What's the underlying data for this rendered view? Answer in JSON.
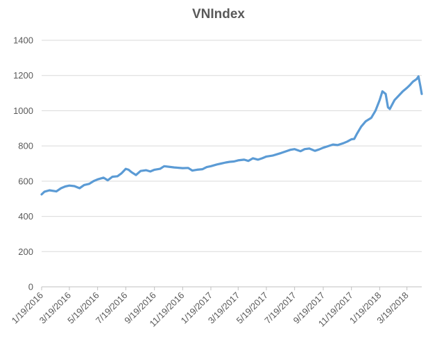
{
  "chart_data": {
    "type": "line",
    "title": "VNIndex",
    "xlabel": "",
    "ylabel": "",
    "ylim": [
      0,
      1400
    ],
    "yticks": [
      0,
      200,
      400,
      600,
      800,
      1000,
      1200,
      1400
    ],
    "xlim": [
      "1/19/2016",
      "4/20/2018"
    ],
    "xticks": [
      "1/19/2016",
      "3/19/2016",
      "5/19/2016",
      "7/19/2016",
      "9/19/2016",
      "11/19/2016",
      "1/19/2017",
      "3/19/2017",
      "5/19/2017",
      "7/19/2017",
      "9/19/2017",
      "11/19/2017",
      "1/19/2018",
      "3/19/2018"
    ],
    "grid": true,
    "series_color": "#5b9bd5",
    "series": [
      {
        "x": [
          "1/19/2016",
          "1/25/2016",
          "2/5/2016",
          "2/20/2016",
          "3/1/2016",
          "3/10/2016",
          "3/19/2016",
          "3/30/2016",
          "4/10/2016",
          "4/20/2016",
          "5/1/2016",
          "5/10/2016",
          "5/19/2016",
          "6/1/2016",
          "6/10/2016",
          "6/20/2016",
          "7/1/2016",
          "7/10/2016",
          "7/19/2016",
          "7/25/2016",
          "8/1/2016",
          "8/10/2016",
          "8/20/2016",
          "9/1/2016",
          "9/10/2016",
          "9/19/2016",
          "10/1/2016",
          "10/10/2016",
          "10/20/2016",
          "11/1/2016",
          "11/10/2016",
          "11/19/2016",
          "12/1/2016",
          "12/10/2016",
          "12/20/2016",
          "1/1/2017",
          "1/10/2017",
          "1/19/2017",
          "2/1/2017",
          "2/10/2017",
          "2/20/2017",
          "3/1/2017",
          "3/10/2017",
          "3/19/2017",
          "4/1/2017",
          "4/10/2017",
          "4/20/2017",
          "5/1/2017",
          "5/10/2017",
          "5/19/2017",
          "6/1/2017",
          "6/10/2017",
          "6/20/2017",
          "7/1/2017",
          "7/10/2017",
          "7/19/2017",
          "8/1/2017",
          "8/10/2017",
          "8/20/2017",
          "9/1/2017",
          "9/10/2017",
          "9/19/2017",
          "10/1/2017",
          "10/10/2017",
          "10/20/2017",
          "11/1/2017",
          "11/10/2017",
          "11/19/2017",
          "11/25/2017",
          "12/1/2017",
          "12/10/2017",
          "12/20/2017",
          "1/1/2018",
          "1/10/2018",
          "1/19/2018",
          "1/25/2018",
          "2/1/2018",
          "2/6/2018",
          "2/10/2018",
          "2/20/2018",
          "3/1/2018",
          "3/10/2018",
          "3/19/2018",
          "3/25/2018",
          "4/1/2018",
          "4/9/2018",
          "4/13/2018",
          "4/17/2018",
          "4/20/2018"
        ],
        "values": [
          525,
          540,
          548,
          542,
          560,
          570,
          575,
          572,
          560,
          578,
          585,
          600,
          610,
          620,
          605,
          625,
          628,
          645,
          670,
          665,
          650,
          635,
          658,
          662,
          655,
          665,
          670,
          685,
          682,
          678,
          676,
          674,
          675,
          660,
          665,
          668,
          680,
          685,
          695,
          700,
          706,
          710,
          712,
          718,
          722,
          715,
          730,
          722,
          730,
          740,
          745,
          752,
          760,
          770,
          778,
          782,
          770,
          782,
          785,
          772,
          780,
          790,
          800,
          808,
          805,
          815,
          825,
          838,
          840,
          870,
          910,
          940,
          960,
          1000,
          1060,
          1110,
          1095,
          1020,
          1010,
          1060,
          1085,
          1110,
          1130,
          1145,
          1165,
          1180,
          1195,
          1140,
          1095
        ]
      }
    ]
  }
}
